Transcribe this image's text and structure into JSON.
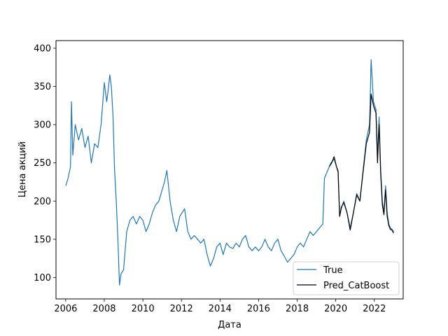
{
  "chart_data": {
    "type": "line",
    "xlabel": "Дата",
    "ylabel": "Цена акций",
    "xlim": [
      "2005-07-01",
      "2023-07-01"
    ],
    "ylim": [
      72,
      410
    ],
    "x_ticks": [
      "2006",
      "2008",
      "2010",
      "2012",
      "2014",
      "2016",
      "2018",
      "2020",
      "2022"
    ],
    "y_ticks": [
      100,
      150,
      200,
      250,
      300,
      350,
      400
    ],
    "legend_placement": "lower-right",
    "grid": false,
    "series": [
      {
        "name": "True",
        "color": "#1f77b4",
        "points": [
          [
            "2006-01-01",
            220
          ],
          [
            "2006-02-15",
            230
          ],
          [
            "2006-04-01",
            245
          ],
          [
            "2006-04-20",
            330
          ],
          [
            "2006-05-15",
            260
          ],
          [
            "2006-07-01",
            300
          ],
          [
            "2006-09-01",
            280
          ],
          [
            "2006-11-01",
            295
          ],
          [
            "2007-01-01",
            270
          ],
          [
            "2007-03-01",
            285
          ],
          [
            "2007-05-01",
            250
          ],
          [
            "2007-07-01",
            275
          ],
          [
            "2007-09-01",
            270
          ],
          [
            "2007-11-01",
            300
          ],
          [
            "2008-01-01",
            355
          ],
          [
            "2008-02-15",
            330
          ],
          [
            "2008-03-15",
            345
          ],
          [
            "2008-04-15",
            365
          ],
          [
            "2008-05-15",
            350
          ],
          [
            "2008-06-15",
            310
          ],
          [
            "2008-07-15",
            240
          ],
          [
            "2008-08-15",
            200
          ],
          [
            "2008-09-15",
            150
          ],
          [
            "2008-10-15",
            90
          ],
          [
            "2008-11-15",
            105
          ],
          [
            "2008-12-31",
            110
          ],
          [
            "2009-03-01",
            160
          ],
          [
            "2009-05-01",
            175
          ],
          [
            "2009-07-01",
            180
          ],
          [
            "2009-09-01",
            170
          ],
          [
            "2009-11-01",
            180
          ],
          [
            "2010-01-01",
            175
          ],
          [
            "2010-03-01",
            160
          ],
          [
            "2010-05-01",
            170
          ],
          [
            "2010-07-01",
            185
          ],
          [
            "2010-09-01",
            195
          ],
          [
            "2010-11-01",
            200
          ],
          [
            "2011-01-01",
            215
          ],
          [
            "2011-02-15",
            225
          ],
          [
            "2011-04-01",
            240
          ],
          [
            "2011-06-01",
            200
          ],
          [
            "2011-08-01",
            175
          ],
          [
            "2011-10-01",
            160
          ],
          [
            "2011-12-01",
            180
          ],
          [
            "2012-03-01",
            190
          ],
          [
            "2012-05-01",
            160
          ],
          [
            "2012-07-01",
            150
          ],
          [
            "2012-09-01",
            155
          ],
          [
            "2012-11-01",
            150
          ],
          [
            "2013-01-01",
            145
          ],
          [
            "2013-03-01",
            150
          ],
          [
            "2013-05-01",
            130
          ],
          [
            "2013-07-01",
            115
          ],
          [
            "2013-09-01",
            125
          ],
          [
            "2013-11-01",
            140
          ],
          [
            "2014-01-01",
            145
          ],
          [
            "2014-03-01",
            130
          ],
          [
            "2014-05-01",
            145
          ],
          [
            "2014-07-01",
            140
          ],
          [
            "2014-09-01",
            138
          ],
          [
            "2014-11-01",
            145
          ],
          [
            "2015-01-01",
            140
          ],
          [
            "2015-03-01",
            150
          ],
          [
            "2015-05-01",
            155
          ],
          [
            "2015-07-01",
            140
          ],
          [
            "2015-09-01",
            135
          ],
          [
            "2015-11-01",
            140
          ],
          [
            "2016-01-01",
            135
          ],
          [
            "2016-03-01",
            140
          ],
          [
            "2016-05-01",
            150
          ],
          [
            "2016-07-01",
            140
          ],
          [
            "2016-09-01",
            135
          ],
          [
            "2016-11-01",
            145
          ],
          [
            "2017-01-01",
            150
          ],
          [
            "2017-03-01",
            135
          ],
          [
            "2017-05-01",
            128
          ],
          [
            "2017-07-01",
            120
          ],
          [
            "2017-09-01",
            125
          ],
          [
            "2017-11-01",
            130
          ],
          [
            "2018-01-01",
            140
          ],
          [
            "2018-03-01",
            145
          ],
          [
            "2018-05-01",
            140
          ],
          [
            "2018-07-01",
            150
          ],
          [
            "2018-09-01",
            160
          ],
          [
            "2018-11-01",
            155
          ],
          [
            "2019-01-01",
            160
          ],
          [
            "2019-03-01",
            165
          ],
          [
            "2019-05-01",
            170
          ],
          [
            "2019-06-01",
            230
          ],
          [
            "2019-08-01",
            240
          ],
          [
            "2019-10-01",
            250
          ],
          [
            "2019-12-01",
            255
          ],
          [
            "2020-01-15",
            245
          ],
          [
            "2020-02-15",
            240
          ],
          [
            "2020-03-15",
            180
          ],
          [
            "2020-04-15",
            190
          ],
          [
            "2020-06-01",
            200
          ],
          [
            "2020-08-01",
            185
          ],
          [
            "2020-10-01",
            165
          ],
          [
            "2020-12-01",
            185
          ],
          [
            "2021-02-01",
            210
          ],
          [
            "2021-04-01",
            200
          ],
          [
            "2021-06-01",
            240
          ],
          [
            "2021-08-01",
            280
          ],
          [
            "2021-10-01",
            300
          ],
          [
            "2021-11-01",
            385
          ],
          [
            "2021-12-15",
            330
          ],
          [
            "2022-02-01",
            320
          ],
          [
            "2022-03-01",
            260
          ],
          [
            "2022-04-01",
            310
          ],
          [
            "2022-05-01",
            240
          ],
          [
            "2022-06-01",
            200
          ],
          [
            "2022-07-01",
            185
          ],
          [
            "2022-08-01",
            220
          ],
          [
            "2022-09-01",
            185
          ],
          [
            "2022-10-01",
            170
          ],
          [
            "2022-11-01",
            165
          ],
          [
            "2022-12-01",
            163
          ],
          [
            "2022-12-31",
            160
          ]
        ]
      },
      {
        "name": "Pred_CatBoost",
        "color": "#000000",
        "points": [
          [
            "2019-09-01",
            245
          ],
          [
            "2019-10-15",
            250
          ],
          [
            "2019-12-01",
            258
          ],
          [
            "2020-01-15",
            245
          ],
          [
            "2020-02-15",
            238
          ],
          [
            "2020-03-15",
            180
          ],
          [
            "2020-04-15",
            192
          ],
          [
            "2020-06-01",
            198
          ],
          [
            "2020-08-01",
            185
          ],
          [
            "2020-10-01",
            162
          ],
          [
            "2020-12-01",
            185
          ],
          [
            "2021-02-01",
            208
          ],
          [
            "2021-04-01",
            200
          ],
          [
            "2021-06-01",
            238
          ],
          [
            "2021-08-01",
            275
          ],
          [
            "2021-10-01",
            290
          ],
          [
            "2021-11-01",
            340
          ],
          [
            "2021-12-15",
            325
          ],
          [
            "2022-02-01",
            315
          ],
          [
            "2022-03-01",
            250
          ],
          [
            "2022-04-01",
            300
          ],
          [
            "2022-05-01",
            235
          ],
          [
            "2022-06-01",
            195
          ],
          [
            "2022-07-01",
            182
          ],
          [
            "2022-08-01",
            215
          ],
          [
            "2022-09-01",
            180
          ],
          [
            "2022-10-01",
            168
          ],
          [
            "2022-11-01",
            163
          ],
          [
            "2022-12-01",
            162
          ],
          [
            "2022-12-31",
            158
          ]
        ]
      }
    ]
  }
}
